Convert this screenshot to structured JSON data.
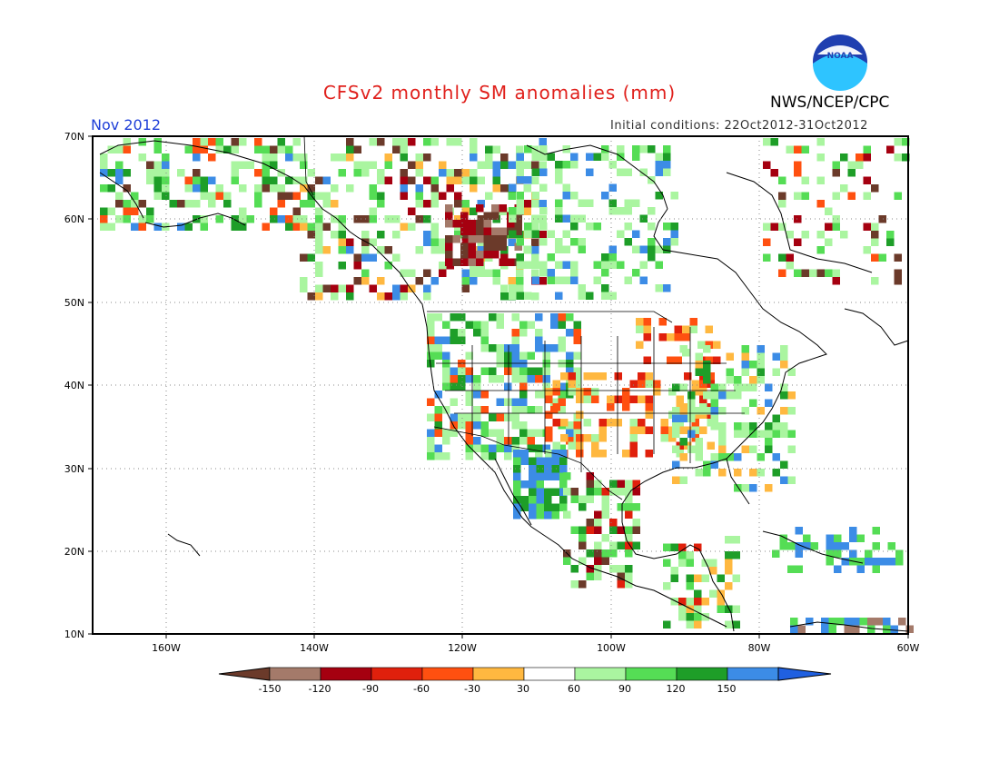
{
  "header": {
    "title": "CFSv2 monthly SM anomalies (mm)",
    "organization": "NWS/NCEP/CPC",
    "logo_text": "NOAA",
    "month": "Nov 2012",
    "initial_conditions": "Initial conditions: 22Oct2012-31Oct2012"
  },
  "map": {
    "lon_range": [
      -170,
      -60
    ],
    "lat_range": [
      10,
      70
    ],
    "lat_labels": [
      "70N",
      "60N",
      "50N",
      "40N",
      "30N",
      "20N",
      "10N"
    ],
    "lon_labels": [
      "160W",
      "140W",
      "120W",
      "100W",
      "80W",
      "60W"
    ]
  },
  "legend": {
    "labels": [
      "-150",
      "-120",
      "-90",
      "-60",
      "-30",
      "30",
      "60",
      "90",
      "120",
      "150"
    ],
    "colors": [
      "#6b3a2a",
      "#a47a6a",
      "#a50010",
      "#e0200c",
      "#ff5010",
      "#ffb840",
      "#ffffff",
      "#aaf5a0",
      "#55dd55",
      "#1e9e28",
      "#3c8ce6",
      "#2060e0"
    ]
  },
  "colors": {
    "title": "#e0201c",
    "month": "#1f3fd8",
    "logo_blue": "#1f3fb0",
    "logo_cyan": "#2ec4ff"
  }
}
